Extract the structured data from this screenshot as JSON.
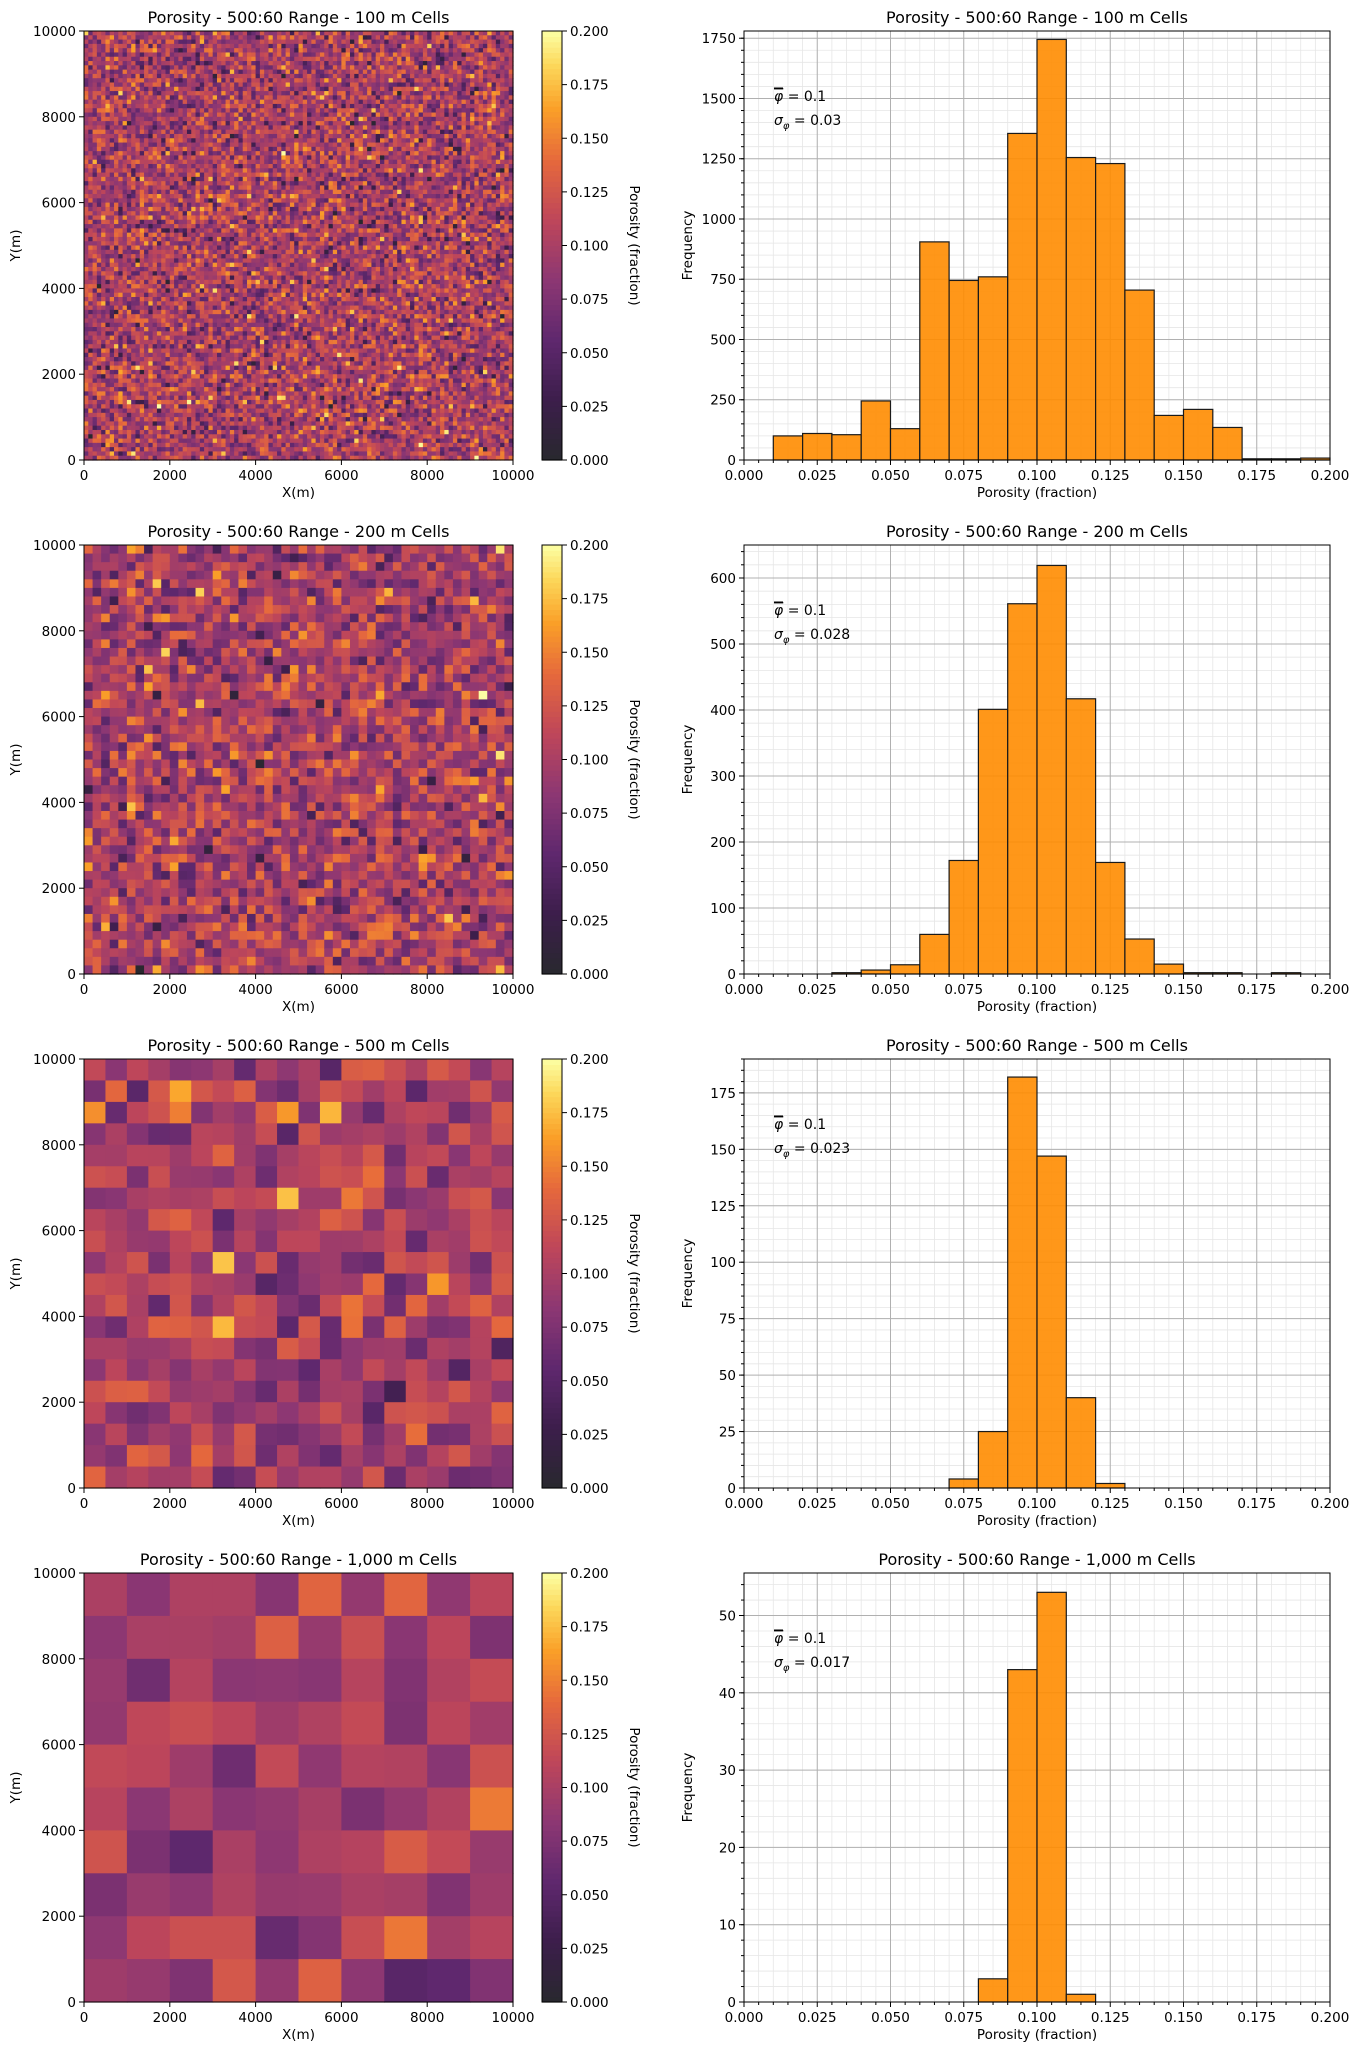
{
  "figure": {
    "panels": [
      {
        "title": "Porosity - 500:60 Range - 100 m Cells",
        "map": {
          "xlabel": "X(m)",
          "ylabel": "Y(m)",
          "x_ticks": [
            "0",
            "2000",
            "4000",
            "6000",
            "8000",
            "10000"
          ],
          "y_ticks": [
            "0",
            "2000",
            "4000",
            "6000",
            "8000",
            "10000"
          ],
          "cells_per_side": 100
        },
        "colorbar": {
          "label": "Porosity (fraction)",
          "ticks": [
            "0.000",
            "0.025",
            "0.050",
            "0.075",
            "0.100",
            "0.125",
            "0.150",
            "0.175",
            "0.200"
          ]
        },
        "hist_stats": {
          "mean": "0.1",
          "std": "0.03"
        }
      },
      {
        "title": "Porosity - 500:60 Range - 200 m Cells",
        "map": {
          "xlabel": "X(m)",
          "ylabel": "Y(m)",
          "x_ticks": [
            "0",
            "2000",
            "4000",
            "6000",
            "8000",
            "10000"
          ],
          "y_ticks": [
            "0",
            "2000",
            "4000",
            "6000",
            "8000",
            "10000"
          ],
          "cells_per_side": 50
        },
        "colorbar": {
          "label": "Porosity (fraction)",
          "ticks": [
            "0.000",
            "0.025",
            "0.050",
            "0.075",
            "0.100",
            "0.125",
            "0.150",
            "0.175",
            "0.200"
          ]
        },
        "hist_stats": {
          "mean": "0.1",
          "std": "0.028"
        }
      },
      {
        "title": "Porosity - 500:60 Range - 500 m Cells",
        "map": {
          "xlabel": "X(m)",
          "ylabel": "Y(m)",
          "x_ticks": [
            "0",
            "2000",
            "4000",
            "6000",
            "8000",
            "10000"
          ],
          "y_ticks": [
            "0",
            "2000",
            "4000",
            "6000",
            "8000",
            "10000"
          ],
          "cells_per_side": 20
        },
        "colorbar": {
          "label": "Porosity (fraction)",
          "ticks": [
            "0.000",
            "0.025",
            "0.050",
            "0.075",
            "0.100",
            "0.125",
            "0.150",
            "0.175",
            "0.200"
          ]
        },
        "hist_stats": {
          "mean": "0.1",
          "std": "0.023"
        }
      },
      {
        "title": "Porosity - 500:60 Range - 1,000 m Cells",
        "map": {
          "xlabel": "X(m)",
          "ylabel": "Y(m)",
          "x_ticks": [
            "0",
            "2000",
            "4000",
            "6000",
            "8000",
            "10000"
          ],
          "y_ticks": [
            "0",
            "2000",
            "4000",
            "6000",
            "8000",
            "10000"
          ],
          "cells_per_side": 10
        },
        "colorbar": {
          "label": "Porosity (fraction)",
          "ticks": [
            "0.000",
            "0.025",
            "0.050",
            "0.075",
            "0.100",
            "0.125",
            "0.150",
            "0.175",
            "0.200"
          ]
        },
        "hist_stats": {
          "mean": "0.1",
          "std": "0.017"
        }
      }
    ]
  },
  "chart_data": [
    {
      "type": "heatmap",
      "title": "Porosity - 500:60 Range - 100 m Cells",
      "xlabel": "X(m)",
      "ylabel": "Y(m)",
      "xlim": [
        0,
        10000
      ],
      "ylim": [
        0,
        10000
      ],
      "colorbar_label": "Porosity (fraction)",
      "clim": [
        0.0,
        0.2
      ],
      "colormap": "inferno",
      "cells_per_side": 100,
      "mean": 0.1,
      "std": 0.03
    },
    {
      "type": "bar",
      "title": "Porosity - 500:60 Range - 100 m Cells",
      "xlabel": "Porosity (fraction)",
      "ylabel": "Frequency",
      "xlim": [
        0.0,
        0.2
      ],
      "ylim": [
        0,
        1780
      ],
      "x_ticks": [
        "0.000",
        "0.025",
        "0.050",
        "0.075",
        "0.100",
        "0.125",
        "0.150",
        "0.175",
        "0.200"
      ],
      "y_ticks": [
        "0",
        "250",
        "500",
        "750",
        "1000",
        "1250",
        "1500",
        "1750"
      ],
      "bin_width": 0.01,
      "bin_starts": [
        0.01,
        0.02,
        0.03,
        0.04,
        0.05,
        0.06,
        0.07,
        0.08,
        0.09,
        0.1,
        0.11,
        0.12,
        0.13,
        0.14,
        0.15,
        0.16,
        0.17,
        0.18,
        0.19
      ],
      "values": [
        100,
        110,
        105,
        245,
        130,
        905,
        745,
        760,
        1355,
        1745,
        1255,
        1230,
        705,
        185,
        210,
        135,
        5,
        5,
        8
      ],
      "bar_color": "#ff8c00",
      "grid": true,
      "annotations": [
        "φ̄ = 0.1",
        "σφ = 0.03"
      ]
    },
    {
      "type": "heatmap",
      "title": "Porosity - 500:60 Range - 200 m Cells",
      "xlabel": "X(m)",
      "ylabel": "Y(m)",
      "xlim": [
        0,
        10000
      ],
      "ylim": [
        0,
        10000
      ],
      "colorbar_label": "Porosity (fraction)",
      "clim": [
        0.0,
        0.2
      ],
      "colormap": "inferno",
      "cells_per_side": 50,
      "mean": 0.1,
      "std": 0.028
    },
    {
      "type": "bar",
      "title": "Porosity - 500:60 Range - 200 m Cells",
      "xlabel": "Porosity (fraction)",
      "ylabel": "Frequency",
      "xlim": [
        0.0,
        0.2
      ],
      "ylim": [
        0,
        650
      ],
      "x_ticks": [
        "0.000",
        "0.025",
        "0.050",
        "0.075",
        "0.100",
        "0.125",
        "0.150",
        "0.175",
        "0.200"
      ],
      "y_ticks": [
        "0",
        "100",
        "200",
        "300",
        "400",
        "500",
        "600"
      ],
      "bin_width": 0.01,
      "bin_starts": [
        0.03,
        0.04,
        0.05,
        0.06,
        0.07,
        0.08,
        0.09,
        0.1,
        0.11,
        0.12,
        0.13,
        0.14,
        0.15,
        0.16,
        0.18
      ],
      "values": [
        2,
        6,
        14,
        60,
        172,
        401,
        561,
        619,
        417,
        169,
        53,
        15,
        2,
        2,
        2
      ],
      "bar_color": "#ff8c00",
      "grid": true,
      "annotations": [
        "φ̄ = 0.1",
        "σφ = 0.028"
      ]
    },
    {
      "type": "heatmap",
      "title": "Porosity - 500:60 Range - 500 m Cells",
      "xlabel": "X(m)",
      "ylabel": "Y(m)",
      "xlim": [
        0,
        10000
      ],
      "ylim": [
        0,
        10000
      ],
      "colorbar_label": "Porosity (fraction)",
      "clim": [
        0.0,
        0.2
      ],
      "colormap": "inferno",
      "cells_per_side": 20,
      "mean": 0.1,
      "std": 0.023
    },
    {
      "type": "bar",
      "title": "Porosity - 500:60 Range - 500 m Cells",
      "xlabel": "Porosity (fraction)",
      "ylabel": "Frequency",
      "xlim": [
        0.0,
        0.2
      ],
      "ylim": [
        0,
        190
      ],
      "x_ticks": [
        "0.000",
        "0.025",
        "0.050",
        "0.075",
        "0.100",
        "0.125",
        "0.150",
        "0.175",
        "0.200"
      ],
      "y_ticks": [
        "0",
        "25",
        "50",
        "75",
        "100",
        "125",
        "150",
        "175"
      ],
      "bin_width": 0.01,
      "bin_starts": [
        0.07,
        0.08,
        0.09,
        0.1,
        0.11,
        0.12
      ],
      "values": [
        4,
        25,
        182,
        147,
        40,
        2
      ],
      "bar_color": "#ff8c00",
      "grid": true,
      "annotations": [
        "φ̄ = 0.1",
        "σφ = 0.023"
      ]
    },
    {
      "type": "heatmap",
      "title": "Porosity - 500:60 Range - 1,000 m Cells",
      "xlabel": "X(m)",
      "ylabel": "Y(m)",
      "xlim": [
        0,
        10000
      ],
      "ylim": [
        0,
        10000
      ],
      "colorbar_label": "Porosity (fraction)",
      "clim": [
        0.0,
        0.2
      ],
      "colormap": "inferno",
      "cells_per_side": 10,
      "mean": 0.1,
      "std": 0.017
    },
    {
      "type": "bar",
      "title": "Porosity - 500:60 Range - 1,000 m Cells",
      "xlabel": "Porosity (fraction)",
      "ylabel": "Frequency",
      "xlim": [
        0.0,
        0.2
      ],
      "ylim": [
        0,
        55.5
      ],
      "x_ticks": [
        "0.000",
        "0.025",
        "0.050",
        "0.075",
        "0.100",
        "0.125",
        "0.150",
        "0.175",
        "0.200"
      ],
      "y_ticks": [
        "0",
        "10",
        "20",
        "30",
        "40",
        "50"
      ],
      "bin_width": 0.01,
      "bin_starts": [
        0.08,
        0.09,
        0.1,
        0.11
      ],
      "values": [
        3,
        43,
        53,
        1
      ],
      "bar_color": "#ff8c00",
      "grid": true,
      "annotations": [
        "φ̄ = 0.1",
        "σφ = 0.017"
      ]
    }
  ]
}
